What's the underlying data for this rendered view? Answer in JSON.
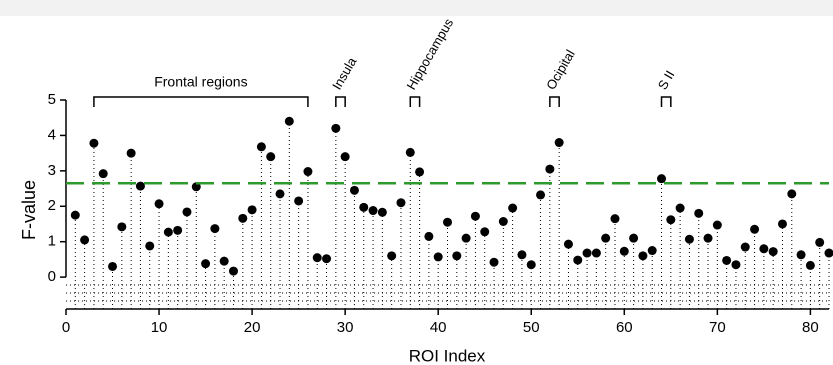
{
  "chart_data": {
    "type": "stem",
    "x_label": "ROI Index",
    "y_label": "F-value",
    "x": [
      1,
      2,
      3,
      4,
      5,
      6,
      7,
      8,
      9,
      10,
      11,
      12,
      13,
      14,
      15,
      16,
      17,
      18,
      19,
      20,
      21,
      22,
      23,
      24,
      25,
      26,
      27,
      28,
      29,
      30,
      31,
      32,
      33,
      34,
      35,
      36,
      37,
      38,
      39,
      40,
      41,
      42,
      43,
      44,
      45,
      46,
      47,
      48,
      49,
      50,
      51,
      52,
      53,
      54,
      55,
      56,
      57,
      58,
      59,
      60,
      61,
      62,
      63,
      64,
      65,
      66,
      67,
      68,
      69,
      70,
      71,
      72,
      73,
      74,
      75,
      76,
      77,
      78,
      79,
      80,
      81,
      82
    ],
    "values": [
      1.75,
      1.05,
      3.78,
      2.92,
      0.3,
      1.42,
      3.5,
      2.57,
      0.88,
      2.07,
      1.27,
      1.32,
      1.84,
      2.55,
      0.38,
      1.37,
      0.45,
      0.17,
      1.66,
      1.9,
      3.68,
      3.4,
      2.35,
      4.4,
      2.15,
      2.98,
      0.55,
      0.52,
      4.2,
      3.4,
      2.45,
      1.97,
      1.88,
      1.83,
      0.6,
      2.1,
      3.52,
      2.97,
      1.15,
      0.57,
      1.55,
      0.6,
      1.1,
      1.72,
      1.28,
      0.42,
      1.57,
      1.95,
      0.63,
      0.35,
      2.32,
      3.05,
      3.8,
      0.93,
      0.48,
      0.68,
      0.68,
      1.1,
      1.65,
      0.73,
      1.1,
      0.6,
      0.75,
      2.78,
      1.62,
      1.95,
      1.07,
      1.8,
      1.1,
      1.47,
      0.47,
      0.35,
      0.85,
      1.35,
      0.8,
      0.72,
      1.5,
      2.35,
      0.63,
      0.33,
      0.98,
      0.68
    ],
    "color": "#000000",
    "threshold": 2.65,
    "threshold_color": "#2e9a2e",
    "xlim": [
      0,
      82
    ],
    "xticks": [
      0,
      10,
      20,
      30,
      40,
      50,
      60,
      70,
      80
    ],
    "ylim": [
      -0.9,
      5
    ],
    "yticks": [
      0,
      1,
      2,
      3,
      4,
      5
    ],
    "regions": [
      {
        "label": "Frontal regions",
        "start": 3,
        "end": 26
      },
      {
        "label": "Insula",
        "start": 29,
        "end": 30
      },
      {
        "label": "Hippocampus",
        "start": 37,
        "end": 38
      },
      {
        "label": "Ocipital",
        "start": 52,
        "end": 53
      },
      {
        "label": "S II",
        "start": 64,
        "end": 65
      }
    ]
  }
}
